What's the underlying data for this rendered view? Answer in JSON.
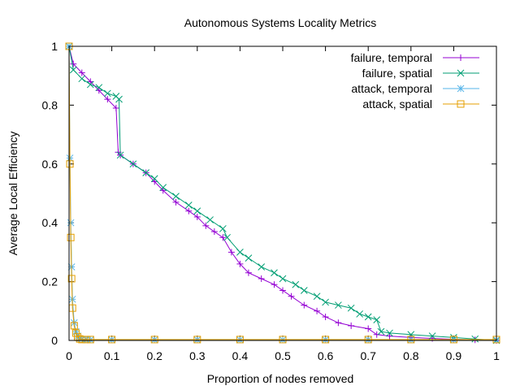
{
  "chart_data": {
    "type": "line",
    "title": "Autonomous Systems Locality Metrics",
    "xlabel": "Proportion of nodes removed",
    "ylabel": "Average Local Efficiency",
    "xlim": [
      0,
      1
    ],
    "ylim": [
      0,
      1
    ],
    "xticks": [
      0,
      0.1,
      0.2,
      0.3,
      0.4,
      0.5,
      0.6,
      0.7,
      0.8,
      0.9,
      1
    ],
    "xtick_labels": [
      "0",
      "0.1",
      "0.2",
      "0.3",
      "0.4",
      "0.5",
      "0.6",
      "0.7",
      "0.8",
      "0.9",
      "1"
    ],
    "yticks": [
      0,
      0.2,
      0.4,
      0.6,
      0.8,
      1
    ],
    "ytick_labels": [
      "0",
      "0.2",
      "0.4",
      "0.6",
      "0.8",
      "1"
    ],
    "grid": false,
    "legend_position": "top-right",
    "series": [
      {
        "name": "failure, temporal",
        "color": "#9400d3",
        "marker": "plus",
        "x": [
          0,
          0.01,
          0.03,
          0.05,
          0.07,
          0.09,
          0.11,
          0.115,
          0.12,
          0.15,
          0.18,
          0.2,
          0.22,
          0.25,
          0.28,
          0.3,
          0.32,
          0.34,
          0.36,
          0.38,
          0.4,
          0.42,
          0.45,
          0.48,
          0.5,
          0.52,
          0.55,
          0.58,
          0.6,
          0.63,
          0.66,
          0.7,
          0.72,
          0.75,
          0.8,
          0.85,
          0.9,
          0.95,
          1
        ],
        "y": [
          1,
          0.94,
          0.91,
          0.88,
          0.85,
          0.82,
          0.79,
          0.64,
          0.63,
          0.6,
          0.57,
          0.54,
          0.51,
          0.47,
          0.44,
          0.42,
          0.39,
          0.37,
          0.35,
          0.3,
          0.26,
          0.23,
          0.21,
          0.19,
          0.17,
          0.15,
          0.12,
          0.1,
          0.08,
          0.06,
          0.05,
          0.04,
          0.02,
          0.015,
          0.01,
          0.007,
          0.004,
          0.002,
          0
        ]
      },
      {
        "name": "failure, spatial",
        "color": "#009e73",
        "marker": "x",
        "x": [
          0,
          0.01,
          0.03,
          0.05,
          0.07,
          0.09,
          0.11,
          0.117,
          0.12,
          0.15,
          0.18,
          0.2,
          0.22,
          0.25,
          0.28,
          0.3,
          0.33,
          0.36,
          0.37,
          0.4,
          0.42,
          0.45,
          0.48,
          0.5,
          0.53,
          0.55,
          0.58,
          0.6,
          0.63,
          0.66,
          0.68,
          0.7,
          0.72,
          0.73,
          0.75,
          0.8,
          0.85,
          0.9,
          0.95,
          1
        ],
        "y": [
          1,
          0.92,
          0.89,
          0.87,
          0.86,
          0.84,
          0.83,
          0.82,
          0.63,
          0.6,
          0.57,
          0.55,
          0.52,
          0.49,
          0.46,
          0.44,
          0.41,
          0.38,
          0.35,
          0.3,
          0.28,
          0.25,
          0.23,
          0.21,
          0.19,
          0.17,
          0.15,
          0.13,
          0.12,
          0.11,
          0.09,
          0.08,
          0.07,
          0.03,
          0.025,
          0.02,
          0.015,
          0.01,
          0.005,
          0
        ]
      },
      {
        "name": "attack, temporal",
        "color": "#56b4e9",
        "marker": "star",
        "x": [
          0,
          0.002,
          0.004,
          0.006,
          0.008,
          0.012,
          0.016,
          0.02,
          0.025,
          0.03,
          0.04,
          0.05,
          0.1,
          0.2,
          0.3,
          0.4,
          0.5,
          0.6,
          0.7,
          0.8,
          0.9,
          1
        ],
        "y": [
          1,
          0.62,
          0.4,
          0.25,
          0.14,
          0.06,
          0.03,
          0.015,
          0.006,
          0.004,
          0.003,
          0.002,
          0.002,
          0.002,
          0.002,
          0.002,
          0.002,
          0.002,
          0.002,
          0.002,
          0.002,
          0.002
        ]
      },
      {
        "name": "attack, spatial",
        "color": "#e69f00",
        "marker": "square",
        "x": [
          0,
          0.002,
          0.004,
          0.006,
          0.008,
          0.012,
          0.016,
          0.02,
          0.025,
          0.03,
          0.04,
          0.05,
          0.1,
          0.2,
          0.3,
          0.4,
          0.5,
          0.6,
          0.7,
          0.8,
          0.9,
          1
        ],
        "y": [
          1,
          0.6,
          0.35,
          0.21,
          0.11,
          0.05,
          0.025,
          0.012,
          0.005,
          0.003,
          0.003,
          0.003,
          0.003,
          0.003,
          0.003,
          0.003,
          0.003,
          0.003,
          0.003,
          0.003,
          0.003,
          0.003
        ]
      }
    ]
  }
}
